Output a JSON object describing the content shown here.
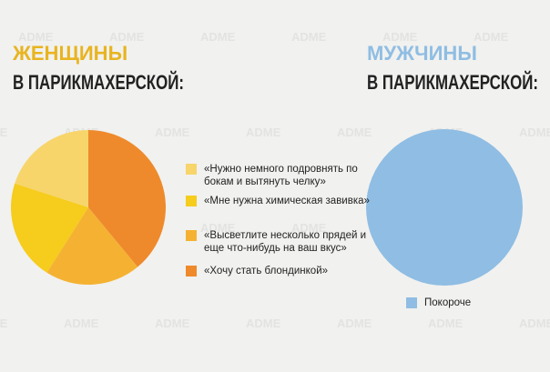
{
  "watermark": "ADME",
  "chart_data": [
    {
      "type": "pie",
      "title": "ЖЕНЩИНЫ",
      "subtitle": "В ПАРИКМАХЕРСКОЙ:",
      "title_color": "#e8b420",
      "categories": [
        "«Нужно немного подровнять по бокам и вытянуть челку»",
        "«Мне нужна химическая завивка»",
        "«Высветлите несколько прядей и еще что-нибудь на ваш вкус»",
        "«Хочу стать блондинкой»"
      ],
      "values": [
        20,
        21,
        20,
        39
      ],
      "colors": [
        "#f7d56b",
        "#f6cc1d",
        "#f5b232",
        "#ee8a2c"
      ]
    },
    {
      "type": "pie",
      "title": "МУЖЧИНЫ",
      "subtitle": "В ПАРИКМАХЕРСКОЙ:",
      "title_color": "#8fbde3",
      "categories": [
        "Покороче"
      ],
      "values": [
        100
      ],
      "colors": [
        "#8fbde3"
      ]
    }
  ]
}
